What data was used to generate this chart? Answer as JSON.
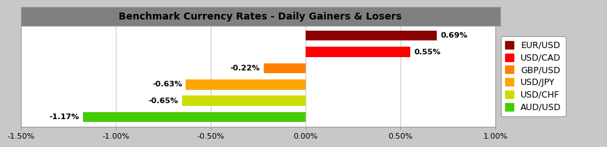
{
  "title": "Benchmark Currency Rates - Daily Gainers & Losers",
  "categories": [
    "EUR/USD",
    "USD/CAD",
    "GBP/USD",
    "USD/JPY",
    "USD/CHF",
    "AUD/USD"
  ],
  "values": [
    0.69,
    0.55,
    -0.22,
    -0.63,
    -0.65,
    -1.17
  ],
  "colors": [
    "#8B0000",
    "#FF0000",
    "#FF8000",
    "#FFA500",
    "#CCDD00",
    "#44CC00"
  ],
  "labels": [
    "0.69%",
    "0.55%",
    "-0.22%",
    "-0.63%",
    "-0.65%",
    "-1.17%"
  ],
  "xlim": [
    -1.5,
    1.0
  ],
  "xticks": [
    -1.5,
    -1.0,
    -0.5,
    0.0,
    0.5,
    1.0
  ],
  "xtick_labels": [
    "-1.50%",
    "-1.00%",
    "-0.50%",
    "0.00%",
    "0.50%",
    "1.00%"
  ],
  "title_bg_color": "#808080",
  "title_fontsize": 10,
  "bar_height": 0.62,
  "label_fontsize": 8,
  "legend_fontsize": 9,
  "chart_bg_color": "#FFFFFF",
  "outer_bg_color": "#C8C8C8",
  "grid_color": "#CCCCCC",
  "spine_color": "#999999"
}
